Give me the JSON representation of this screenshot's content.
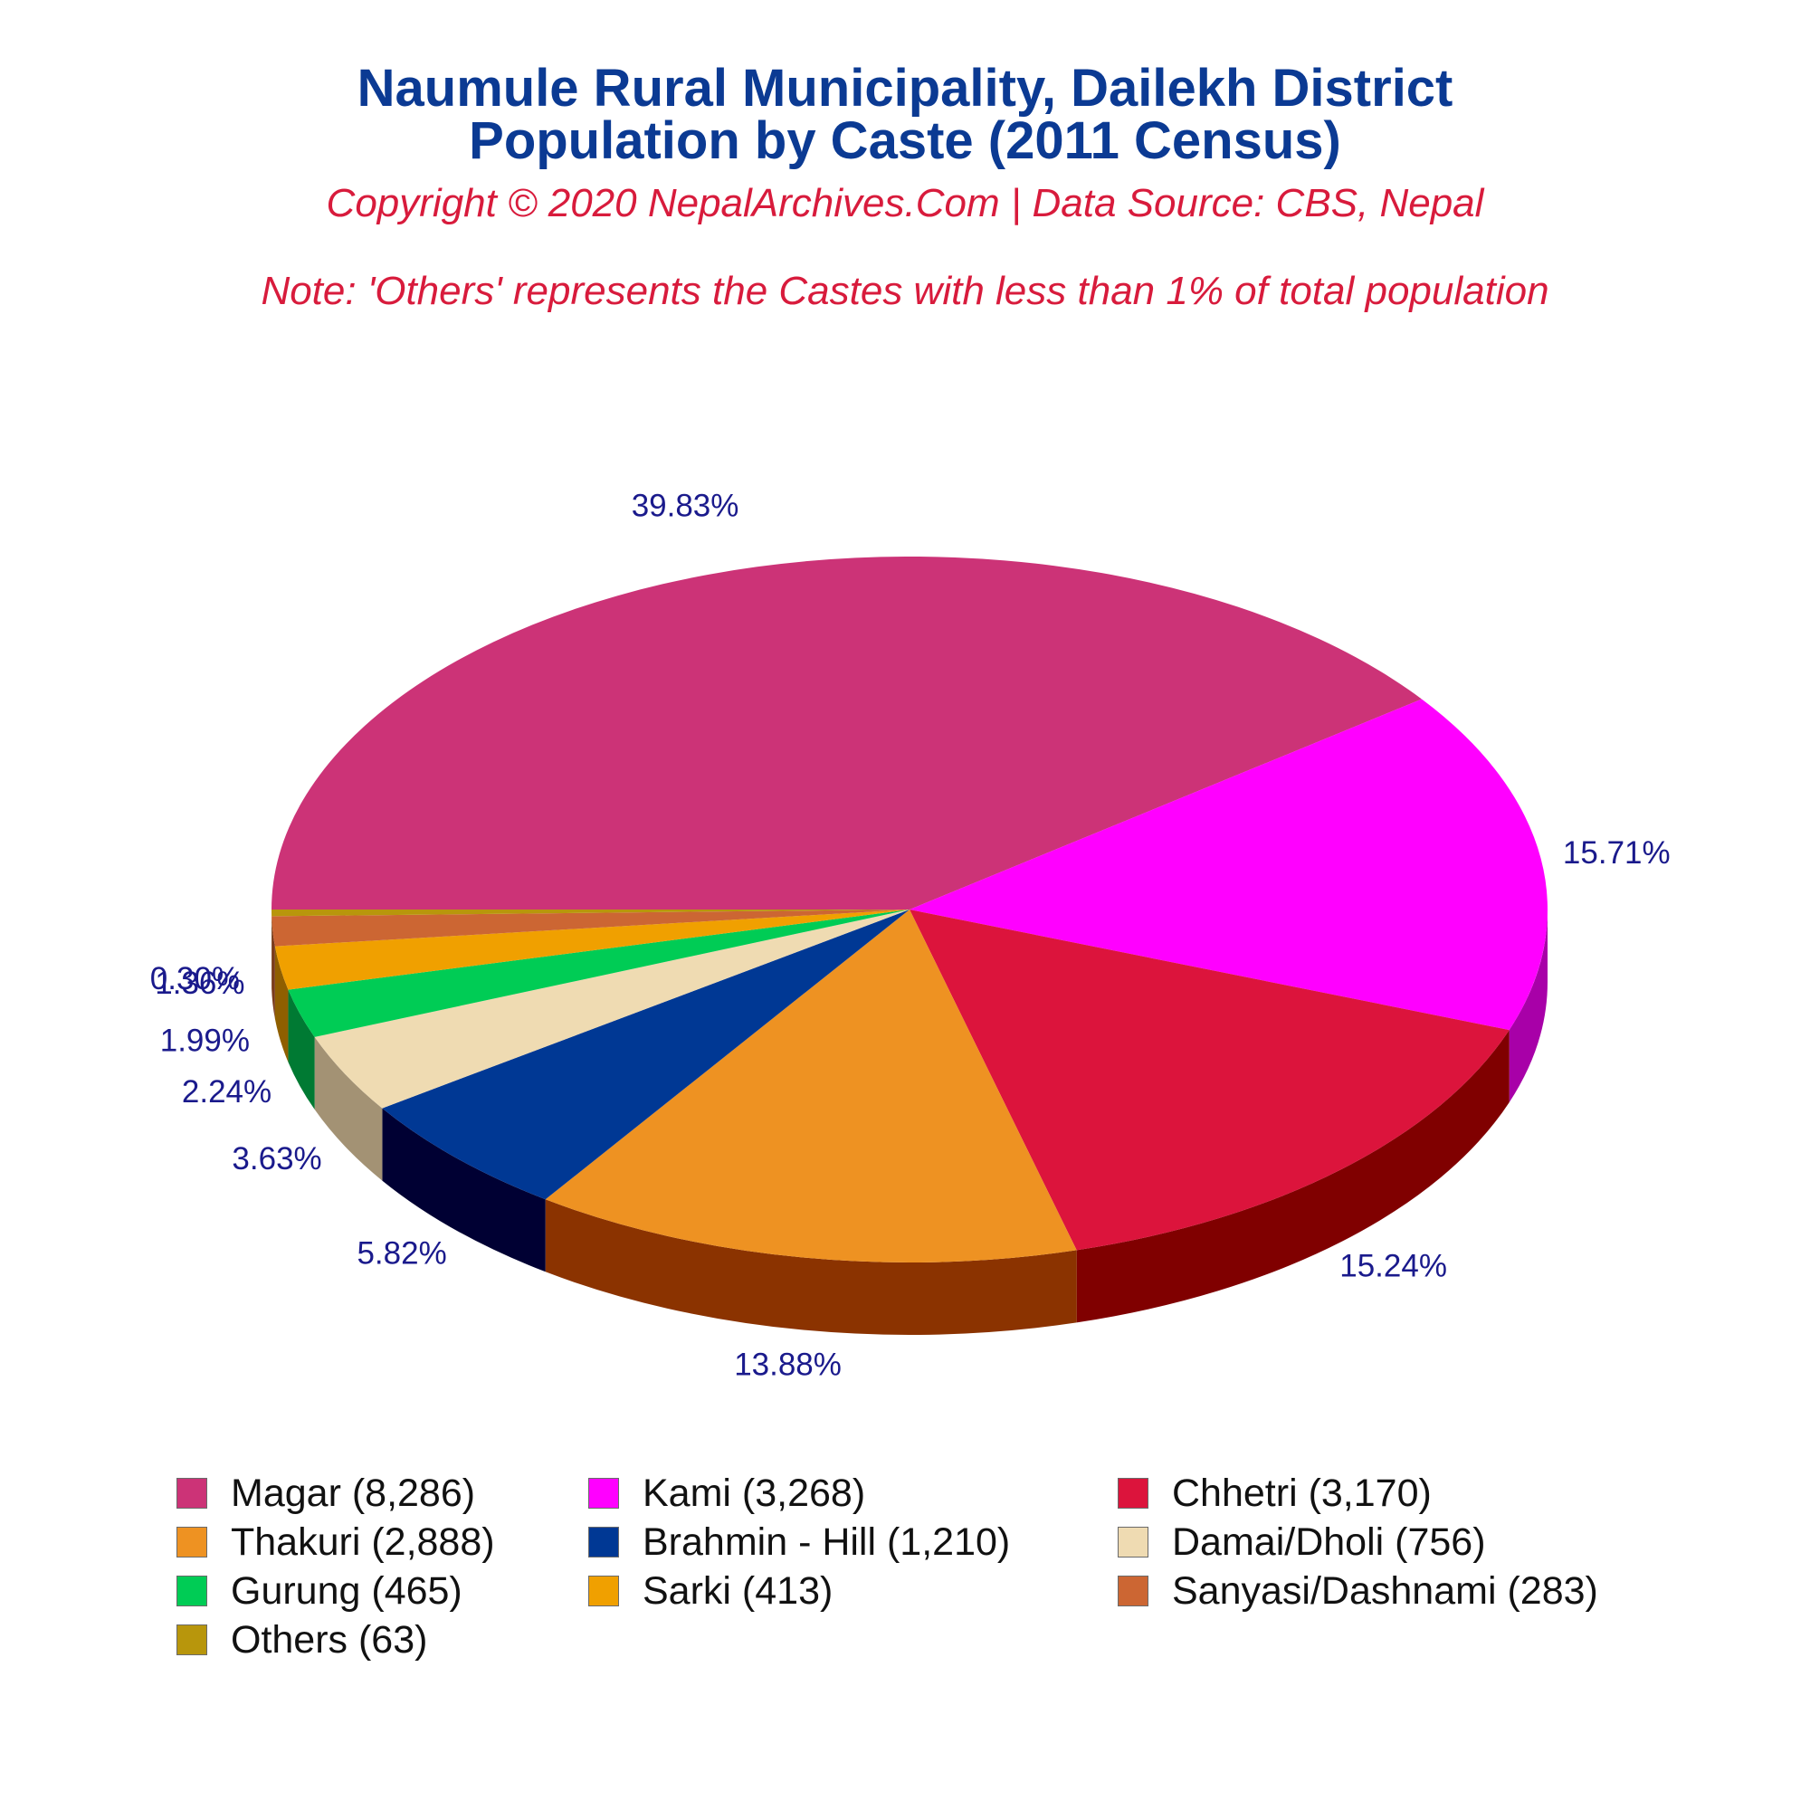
{
  "title_line1": "Naumule Rural Municipality, Dailekh District",
  "title_line2": "Population by Caste (2011 Census)",
  "copyright": "Copyright © 2020 NepalArchives.Com | Data Source: CBS, Nepal",
  "note": "Note: 'Others' represents the Castes with less than 1% of total population",
  "chart_data": {
    "type": "pie",
    "title": "Naumule Rural Municipality, Dailekh District Population by Caste (2011 Census)",
    "start_angle_deg": 180,
    "direction": "counterclockwise",
    "legend_position": "bottom",
    "slices": [
      {
        "name": "Magar",
        "value": 8286,
        "percent_label": "39.83%",
        "legend_label": "Magar (8,286)",
        "color": "#cc3377",
        "side_color": "#8a1f4e"
      },
      {
        "name": "Kami",
        "value": 3268,
        "percent_label": "15.71%",
        "legend_label": "Kami (3,268)",
        "color": "#ff00ff",
        "side_color": "#a800a8"
      },
      {
        "name": "Chhetri",
        "value": 3170,
        "percent_label": "15.24%",
        "legend_label": "Chhetri (3,170)",
        "color": "#dc143c",
        "side_color": "#800000"
      },
      {
        "name": "Thakuri",
        "value": 2888,
        "percent_label": "13.88%",
        "legend_label": "Thakuri (2,888)",
        "color": "#ee9222",
        "side_color": "#8b3300"
      },
      {
        "name": "Brahmin - Hill",
        "value": 1210,
        "percent_label": "5.82%",
        "legend_label": "Brahmin - Hill (1,210)",
        "color": "#003894",
        "side_color": "#000033"
      },
      {
        "name": "Damai/Dholi",
        "value": 756,
        "percent_label": "3.63%",
        "legend_label": "Damai/Dholi (756)",
        "color": "#efdbb2",
        "side_color": "#a39274"
      },
      {
        "name": "Gurung",
        "value": 465,
        "percent_label": "2.24%",
        "legend_label": "Gurung (465)",
        "color": "#00cc55",
        "side_color": "#007a33"
      },
      {
        "name": "Sarki",
        "value": 413,
        "percent_label": "1.99%",
        "legend_label": "Sarki (413)",
        "color": "#f0a000",
        "side_color": "#8f5f00"
      },
      {
        "name": "Sanyasi/Dashnami",
        "value": 283,
        "percent_label": "1.36%",
        "legend_label": "Sanyasi/Dashnami (283)",
        "color": "#cc6633",
        "side_color": "#7a3b1c"
      },
      {
        "name": "Others",
        "value": 63,
        "percent_label": "0.30%",
        "legend_label": "Others (63)",
        "color": "#b8960c",
        "side_color": "#6e5a06"
      }
    ]
  }
}
